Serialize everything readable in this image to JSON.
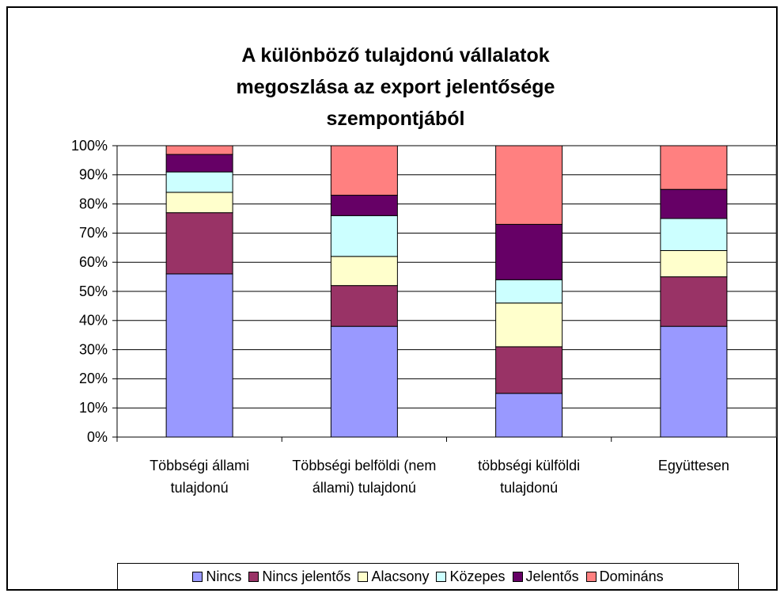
{
  "chart_data": {
    "type": "stacked_bar_100",
    "title": "A különböző tulajdonú vállalatok megoszlása az export jelentősége szempontjából",
    "categories": [
      "Többségi állami tulajdonú",
      "Többségi belföldi (nem állami) tulajdonú",
      "többségi külföldi tulajdonú",
      "Együttesen"
    ],
    "series": [
      {
        "name": "Nincs",
        "color": "#9999ff",
        "values": [
          56,
          38,
          15,
          38
        ]
      },
      {
        "name": "Nincs jelentős",
        "color": "#993366",
        "values": [
          21,
          14,
          16,
          17
        ]
      },
      {
        "name": "Alacsony",
        "color": "#ffffcc",
        "values": [
          7,
          10,
          15,
          9
        ]
      },
      {
        "name": "Közepes",
        "color": "#ccffff",
        "values": [
          7,
          14,
          8,
          11
        ]
      },
      {
        "name": "Jelentős",
        "color": "#660066",
        "values": [
          6,
          7,
          19,
          10
        ]
      },
      {
        "name": "Domináns",
        "color": "#ff8080",
        "values": [
          3,
          17,
          27,
          15
        ]
      }
    ],
    "ylim": [
      0,
      100
    ],
    "yticks": [
      {
        "value": 0,
        "label": "0%"
      },
      {
        "value": 10,
        "label": "10%"
      },
      {
        "value": 20,
        "label": "20%"
      },
      {
        "value": 30,
        "label": "30%"
      },
      {
        "value": 40,
        "label": "40%"
      },
      {
        "value": 50,
        "label": "50%"
      },
      {
        "value": 60,
        "label": "60%"
      },
      {
        "value": 70,
        "label": "70%"
      },
      {
        "value": 80,
        "label": "80%"
      },
      {
        "value": 90,
        "label": "90%"
      },
      {
        "value": 100,
        "label": "100%"
      }
    ],
    "grid": true,
    "legend": "bottom"
  }
}
